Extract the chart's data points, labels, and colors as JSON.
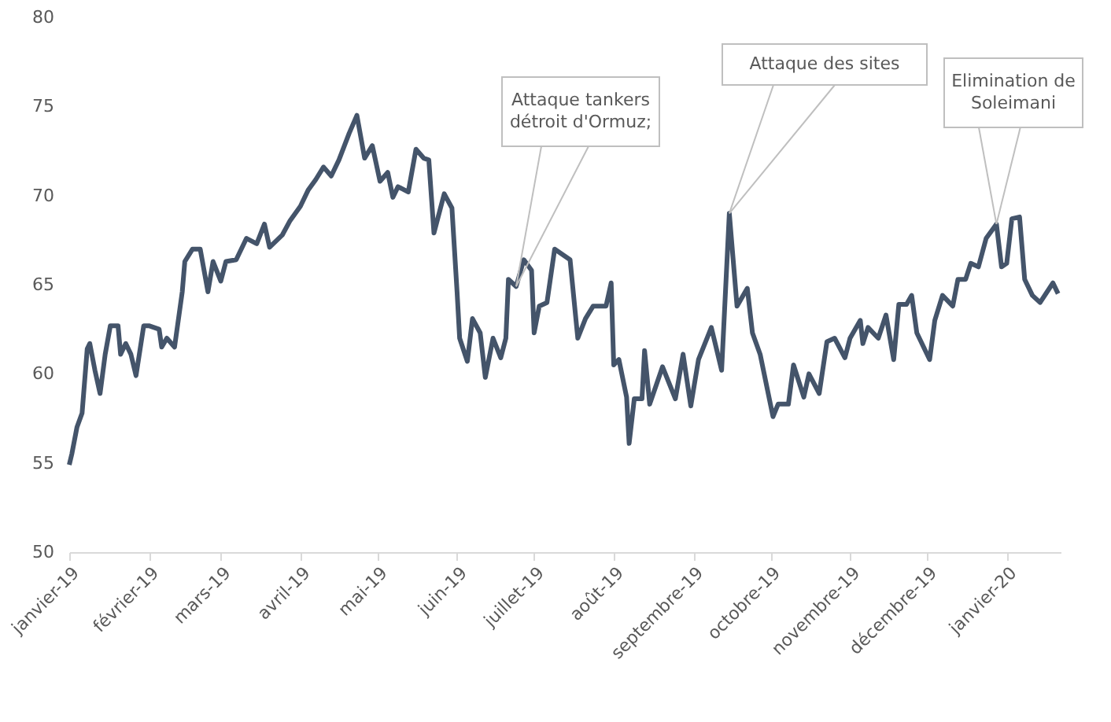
{
  "chart_data": {
    "type": "line",
    "x": [
      "2019-01-01",
      "2019-01-02",
      "2019-01-04",
      "2019-01-06",
      "2019-01-08",
      "2019-01-09",
      "2019-01-11",
      "2019-01-13",
      "2019-01-15",
      "2019-01-17",
      "2019-01-20",
      "2019-01-21",
      "2019-01-23",
      "2019-01-25",
      "2019-01-27",
      "2019-01-30",
      "2019-02-01",
      "2019-02-05",
      "2019-02-06",
      "2019-02-08",
      "2019-02-11",
      "2019-02-14",
      "2019-02-15",
      "2019-02-18",
      "2019-02-21",
      "2019-02-24",
      "2019-02-26",
      "2019-03-01",
      "2019-03-03",
      "2019-03-07",
      "2019-03-11",
      "2019-03-15",
      "2019-03-18",
      "2019-03-20",
      "2019-03-25",
      "2019-03-28",
      "2019-04-01",
      "2019-04-04",
      "2019-04-07",
      "2019-04-10",
      "2019-04-13",
      "2019-04-16",
      "2019-04-20",
      "2019-04-23",
      "2019-04-26",
      "2019-04-29",
      "2019-05-02",
      "2019-05-05",
      "2019-05-07",
      "2019-05-09",
      "2019-05-13",
      "2019-05-16",
      "2019-05-19",
      "2019-05-21",
      "2019-05-23",
      "2019-05-27",
      "2019-05-30",
      "2019-06-01",
      "2019-06-02",
      "2019-06-05",
      "2019-06-07",
      "2019-06-10",
      "2019-06-12",
      "2019-06-15",
      "2019-06-18",
      "2019-06-20",
      "2019-06-21",
      "2019-06-24",
      "2019-06-27",
      "2019-06-30",
      "2019-07-01",
      "2019-07-03",
      "2019-07-06",
      "2019-07-09",
      "2019-07-15",
      "2019-07-18",
      "2019-07-21",
      "2019-07-24",
      "2019-07-29",
      "2019-07-31",
      "2019-08-01",
      "2019-08-03",
      "2019-08-06",
      "2019-08-07",
      "2019-08-09",
      "2019-08-12",
      "2019-08-13",
      "2019-08-15",
      "2019-08-20",
      "2019-08-25",
      "2019-08-28",
      "2019-08-31",
      "2019-09-03",
      "2019-09-08",
      "2019-09-12",
      "2019-09-15",
      "2019-09-18",
      "2019-09-22",
      "2019-09-24",
      "2019-09-27",
      "2019-10-02",
      "2019-10-04",
      "2019-10-08",
      "2019-10-10",
      "2019-10-14",
      "2019-10-16",
      "2019-10-20",
      "2019-10-23",
      "2019-10-26",
      "2019-10-30",
      "2019-11-01",
      "2019-11-05",
      "2019-11-06",
      "2019-11-08",
      "2019-11-12",
      "2019-11-15",
      "2019-11-18",
      "2019-11-20",
      "2019-11-23",
      "2019-11-25",
      "2019-11-27",
      "2019-12-02",
      "2019-12-04",
      "2019-12-07",
      "2019-12-11",
      "2019-12-13",
      "2019-12-16",
      "2019-12-18",
      "2019-12-21",
      "2019-12-24",
      "2019-12-28",
      "2019-12-30",
      "2020-01-01",
      "2020-01-03",
      "2020-01-06",
      "2020-01-08",
      "2020-01-11",
      "2020-01-14",
      "2020-01-19",
      "2020-01-21"
    ],
    "series": [
      {
        "color": "#44546a",
        "values": [
          54.9,
          55.5,
          57.0,
          57.8,
          61.4,
          61.7,
          60.2,
          58.9,
          61.1,
          62.7,
          62.7,
          61.1,
          61.7,
          61.1,
          59.9,
          62.7,
          62.7,
          62.5,
          61.5,
          62.0,
          61.5,
          64.6,
          66.3,
          67.0,
          67.0,
          64.6,
          66.3,
          65.2,
          66.3,
          66.4,
          67.6,
          67.3,
          68.4,
          67.1,
          67.8,
          68.6,
          69.4,
          70.3,
          70.9,
          71.6,
          71.1,
          72.0,
          73.5,
          74.5,
          72.1,
          72.8,
          70.8,
          71.3,
          69.9,
          70.5,
          70.2,
          72.6,
          72.1,
          72.0,
          67.9,
          70.1,
          69.3,
          64.6,
          62.0,
          60.7,
          63.1,
          62.3,
          59.8,
          62.0,
          60.9,
          62.0,
          65.3,
          64.9,
          66.4,
          65.8,
          62.3,
          63.8,
          64.0,
          67.0,
          66.4,
          62.0,
          63.1,
          63.8,
          63.8,
          65.1,
          60.5,
          60.8,
          58.7,
          56.1,
          58.6,
          58.6,
          61.3,
          58.3,
          60.4,
          58.6,
          61.1,
          58.2,
          60.8,
          62.6,
          60.2,
          69.0,
          63.8,
          64.8,
          62.3,
          61.1,
          57.6,
          58.3,
          58.3,
          60.5,
          58.7,
          60.0,
          58.9,
          61.8,
          62.0,
          60.9,
          62.0,
          63.0,
          61.7,
          62.6,
          62.0,
          63.3,
          60.8,
          63.9,
          63.9,
          64.4,
          62.3,
          60.8,
          63.0,
          64.4,
          63.8,
          65.3,
          65.3,
          66.2,
          66.0,
          67.6,
          68.4,
          66.0,
          66.2,
          68.7,
          68.8,
          65.3,
          64.4,
          64.0,
          65.1,
          64.5
        ]
      }
    ],
    "xlim": [
      "2019-01-01",
      "2020-01-22"
    ],
    "xticks": [
      {
        "value": "2019-01-01",
        "label": "janvier-19"
      },
      {
        "value": "2019-02-01",
        "label": "février-19"
      },
      {
        "value": "2019-03-01",
        "label": "mars-19"
      },
      {
        "value": "2019-04-01",
        "label": "avril-19"
      },
      {
        "value": "2019-05-01",
        "label": "mai-19"
      },
      {
        "value": "2019-06-01",
        "label": "juin-19"
      },
      {
        "value": "2019-07-01",
        "label": "juillet-19"
      },
      {
        "value": "2019-08-01",
        "label": "août-19"
      },
      {
        "value": "2019-09-01",
        "label": "septembre-19"
      },
      {
        "value": "2019-10-01",
        "label": "octobre-19"
      },
      {
        "value": "2019-11-01",
        "label": "novembre-19"
      },
      {
        "value": "2019-12-01",
        "label": "décembre-19"
      },
      {
        "value": "2020-01-01",
        "label": "janvier-20"
      }
    ],
    "ylim": [
      50,
      80
    ],
    "yticks": [
      50,
      55,
      60,
      65,
      70,
      75,
      80
    ],
    "grid": false,
    "line_style": "solid",
    "marker": "none",
    "annotations": [
      {
        "text": "Attaque tankers\ndétroit d'Ormuz;",
        "x": "2019-06-24",
        "y": 64.9
      },
      {
        "text": "Attaque des sites",
        "x": "2019-09-15",
        "y": 69.0
      },
      {
        "text": "Elimination de\nSoleimani",
        "x": "2019-12-28",
        "y": 68.4
      }
    ]
  }
}
